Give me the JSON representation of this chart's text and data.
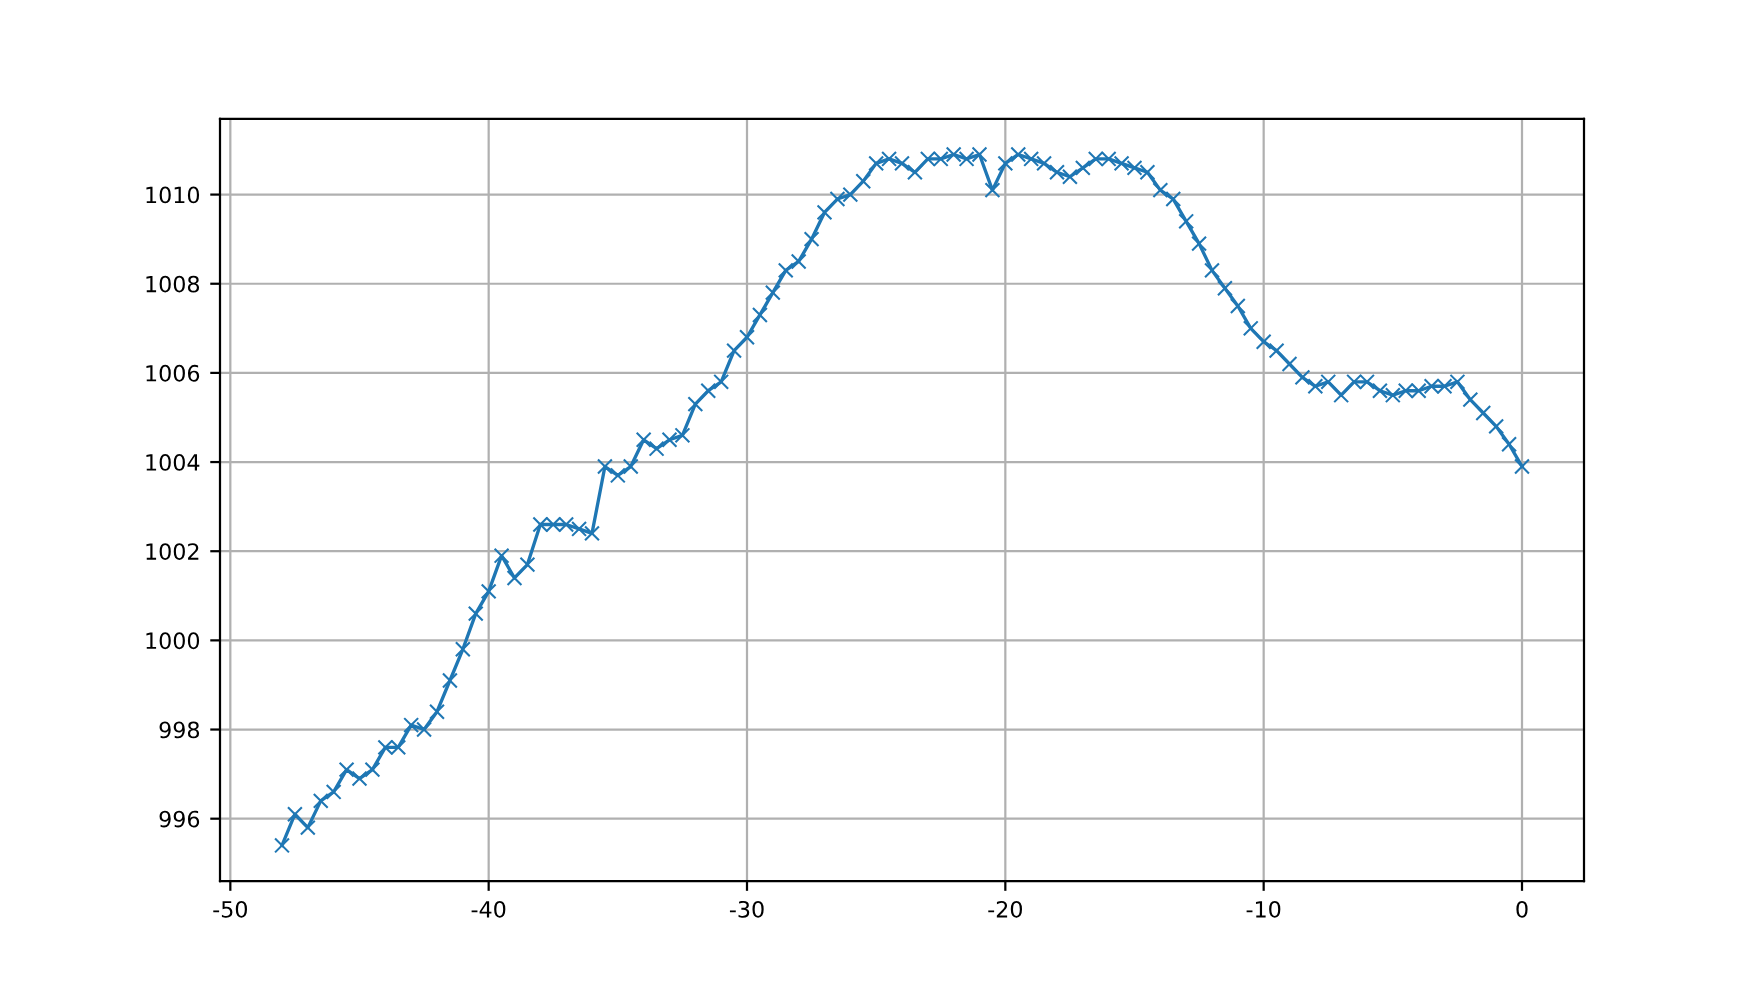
{
  "chart_data": {
    "type": "line",
    "marker": "cross",
    "grid": true,
    "x": [
      -48,
      -47.5,
      -47,
      -46.5,
      -46,
      -45.5,
      -45,
      -44.5,
      -44,
      -43.5,
      -43,
      -42.5,
      -42,
      -41.5,
      -41,
      -40.5,
      -40,
      -39.5,
      -39,
      -38.5,
      -38,
      -37.5,
      -37,
      -36.5,
      -36,
      -35.5,
      -35,
      -34.5,
      -34,
      -33.5,
      -33,
      -32.5,
      -32,
      -31.5,
      -31,
      -30.5,
      -30,
      -29.5,
      -29,
      -28.5,
      -28,
      -27.5,
      -27,
      -26.5,
      -26,
      -25.5,
      -25,
      -24.5,
      -24,
      -23.5,
      -23,
      -22.5,
      -22,
      -21.5,
      -21,
      -20.5,
      -20,
      -19.5,
      -19,
      -18.5,
      -18,
      -17.5,
      -17,
      -16.5,
      -16,
      -15.5,
      -15,
      -14.5,
      -14,
      -13.5,
      -13,
      -12.5,
      -12,
      -11.5,
      -11,
      -10.5,
      -10,
      -9.5,
      -9,
      -8.5,
      -8,
      -7.5,
      -7,
      -6.5,
      -6,
      -5.5,
      -5,
      -4.5,
      -4,
      -3.5,
      -3,
      -2.5,
      -2,
      -1.5,
      -1,
      -0.5,
      0
    ],
    "series": [
      {
        "color": "#1f77b4",
        "values": [
          995.4,
          996.1,
          995.8,
          996.4,
          996.6,
          997.1,
          996.9,
          997.1,
          997.6,
          997.6,
          998.1,
          998.0,
          998.4,
          999.1,
          999.8,
          1000.6,
          1001.1,
          1001.9,
          1001.4,
          1001.7,
          1002.6,
          1002.6,
          1002.6,
          1002.5,
          1002.4,
          1003.9,
          1003.7,
          1003.9,
          1004.5,
          1004.3,
          1004.5,
          1004.6,
          1005.3,
          1005.6,
          1005.8,
          1006.5,
          1006.8,
          1007.3,
          1007.8,
          1008.3,
          1008.5,
          1009.0,
          1009.6,
          1009.9,
          1010.0,
          1010.3,
          1010.7,
          1010.8,
          1010.7,
          1010.5,
          1010.8,
          1010.8,
          1010.9,
          1010.8,
          1010.9,
          1010.1,
          1010.7,
          1010.9,
          1010.8,
          1010.7,
          1010.5,
          1010.4,
          1010.6,
          1010.8,
          1010.8,
          1010.7,
          1010.6,
          1010.5,
          1010.1,
          1009.9,
          1009.4,
          1008.9,
          1008.3,
          1007.9,
          1007.5,
          1007.0,
          1006.7,
          1006.5,
          1006.2,
          1005.9,
          1005.7,
          1005.8,
          1005.5,
          1005.8,
          1005.8,
          1005.6,
          1005.5,
          1005.6,
          1005.6,
          1005.7,
          1005.7,
          1005.8,
          1005.4,
          1005.1,
          1004.8,
          1004.4,
          1003.9
        ]
      }
    ],
    "xlim": [
      -50.4,
      2.4
    ],
    "xticks": [
      -50,
      -40,
      -30,
      -20,
      -10,
      0
    ],
    "ylim": [
      994.6,
      1011.7
    ],
    "yticks": [
      996,
      998,
      1000,
      1002,
      1004,
      1006,
      1008,
      1010
    ]
  }
}
